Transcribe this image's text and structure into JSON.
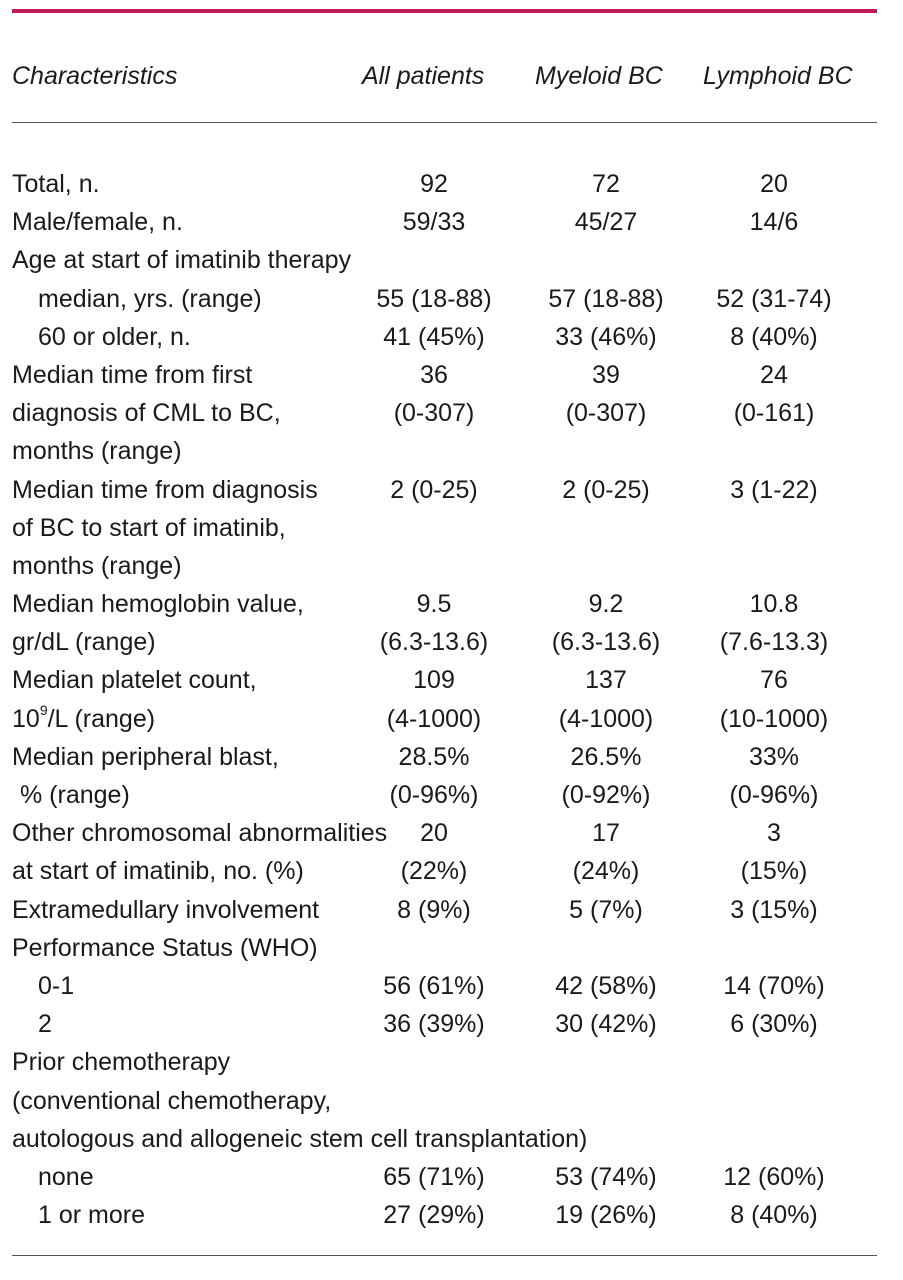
{
  "colors": {
    "accent_rule": "#c2185b"
  },
  "header": {
    "characteristics": "Characteristics",
    "all_patients": "All patients",
    "myeloid": "Myeloid BC",
    "lymphoid": "Lymphoid BC"
  },
  "rows": [
    {
      "label": "Total, n.",
      "all": "92",
      "myeloid": "72",
      "lymphoid": "20"
    },
    {
      "label": "Male/female, n.",
      "all": "59/33",
      "myeloid": "45/27",
      "lymphoid": "14/6"
    },
    {
      "label": "Age at start of imatinib therapy",
      "all": "",
      "myeloid": "",
      "lymphoid": ""
    },
    {
      "label": "median, yrs. (range)",
      "all": "55 (18-88)",
      "myeloid": "57 (18-88)",
      "lymphoid": "52 (31-74)"
    },
    {
      "label": "60 or older, n.",
      "all": "41 (45%)",
      "myeloid": "33 (46%)",
      "lymphoid": "8 (40%)"
    },
    {
      "label": "Median time from first",
      "all": "36",
      "myeloid": "39",
      "lymphoid": "24"
    },
    {
      "label": "diagnosis of CML to BC,",
      "all": "(0-307)",
      "myeloid": "(0-307)",
      "lymphoid": "(0-161)"
    },
    {
      "label": "months (range)",
      "all": "",
      "myeloid": "",
      "lymphoid": ""
    },
    {
      "label": "Median time from diagnosis",
      "all": "2 (0-25)",
      "myeloid": "2 (0-25)",
      "lymphoid": "3 (1-22)"
    },
    {
      "label": "of BC to start of imatinib,",
      "all": "",
      "myeloid": "",
      "lymphoid": ""
    },
    {
      "label": "months (range)",
      "all": "",
      "myeloid": "",
      "lymphoid": ""
    },
    {
      "label": "Median hemoglobin value,",
      "all": "9.5",
      "myeloid": "9.2",
      "lymphoid": "10.8"
    },
    {
      "label": "gr/dL (range)",
      "all": "(6.3-13.6)",
      "myeloid": "(6.3-13.6)",
      "lymphoid": "(7.6-13.3)"
    },
    {
      "label": "Median platelet count,",
      "all": "109",
      "myeloid": "137",
      "lymphoid": "76"
    },
    {
      "label_pre": "10",
      "label_sup": "9",
      "label_post": "/L (range)",
      "all": "(4-1000)",
      "myeloid": "(4-1000)",
      "lymphoid": "(10-1000)"
    },
    {
      "label": "Median peripheral blast,",
      "all": "28.5%",
      "myeloid": "26.5%",
      "lymphoid": "33%"
    },
    {
      "label": "% (range)",
      "all": "(0-96%)",
      "myeloid": "(0-92%)",
      "lymphoid": "(0-96%)"
    },
    {
      "label": "Other chromosomal abnormalities",
      "all": "20",
      "myeloid": "17",
      "lymphoid": "3"
    },
    {
      "label": "at start of imatinib, no. (%)",
      "all": "(22%)",
      "myeloid": "(24%)",
      "lymphoid": "(15%)"
    },
    {
      "label": "Extramedullary involvement",
      "all": "8 (9%)",
      "myeloid": "5 (7%)",
      "lymphoid": "3 (15%)"
    },
    {
      "label": "Performance Status (WHO)",
      "all": "",
      "myeloid": "",
      "lymphoid": ""
    },
    {
      "label": "0-1",
      "all": "56 (61%)",
      "myeloid": "42 (58%)",
      "lymphoid": "14 (70%)"
    },
    {
      "label": "2",
      "all": "36 (39%)",
      "myeloid": "30 (42%)",
      "lymphoid": "6 (30%)"
    },
    {
      "label": "Prior chemotherapy",
      "all": "",
      "myeloid": "",
      "lymphoid": ""
    },
    {
      "label": "(conventional chemotherapy,",
      "all": "",
      "myeloid": "",
      "lymphoid": ""
    },
    {
      "label": "autologous and allogeneic stem cell transplantation)",
      "all": "",
      "myeloid": "",
      "lymphoid": ""
    },
    {
      "label": "none",
      "all": "65 (71%)",
      "myeloid": "53 (74%)",
      "lymphoid": "12 (60%)"
    },
    {
      "label": "1 or more",
      "all": "27 (29%)",
      "myeloid": "19 (26%)",
      "lymphoid": "8 (40%)"
    }
  ]
}
